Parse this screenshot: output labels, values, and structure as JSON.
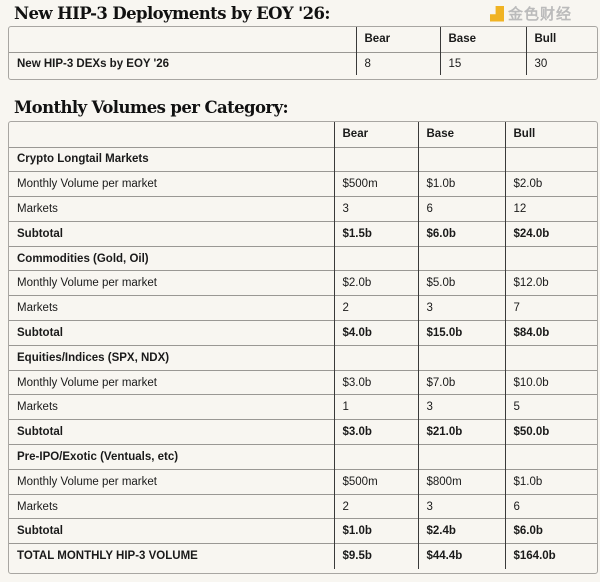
{
  "deployments": {
    "title": "New HIP-3 Deployments by EOY '26:",
    "headers": [
      "",
      "Bear",
      "Base",
      "Bull"
    ],
    "rows": [
      [
        "New HIP-3 DEXs by EOY '26",
        "8",
        "15",
        "30"
      ]
    ]
  },
  "volumes": {
    "title": "Monthly Volumes per Category:",
    "headers": [
      "",
      "Bear",
      "Base",
      "Bull"
    ],
    "rows": [
      [
        "Crypto Longtail Markets",
        "",
        "",
        ""
      ],
      [
        "Monthly Volume per market",
        "$500m",
        "$1.0b",
        "$2.0b"
      ],
      [
        "Markets",
        "3",
        "6",
        "12"
      ],
      [
        "Subtotal",
        "$1.5b",
        "$6.0b",
        "$24.0b"
      ],
      [
        "Commodities (Gold, Oil)",
        "",
        "",
        ""
      ],
      [
        "Monthly Volume per market",
        "$2.0b",
        "$5.0b",
        "$12.0b"
      ],
      [
        "Markets",
        "2",
        "3",
        "7"
      ],
      [
        "Subtotal",
        "$4.0b",
        "$15.0b",
        "$84.0b"
      ],
      [
        "Equities/Indices (SPX, NDX)",
        "",
        "",
        ""
      ],
      [
        "Monthly Volume per market",
        "$3.0b",
        "$7.0b",
        "$10.0b"
      ],
      [
        "Markets",
        "1",
        "3",
        "5"
      ],
      [
        "Subtotal",
        "$3.0b",
        "$21.0b",
        "$50.0b"
      ],
      [
        "Pre-IPO/Exotic (Ventuals, etc)",
        "",
        "",
        ""
      ],
      [
        "Monthly Volume per market",
        "$500m",
        "$800m",
        "$1.0b"
      ],
      [
        "Markets",
        "2",
        "3",
        "6"
      ],
      [
        "Subtotal",
        "$1.0b",
        "$2.4b",
        "$6.0b"
      ],
      [
        "TOTAL MONTHLY HIP-3 VOLUME",
        "$9.5b",
        "$44.4b",
        "$164.0b"
      ]
    ]
  },
  "watermark": "金色财经"
}
